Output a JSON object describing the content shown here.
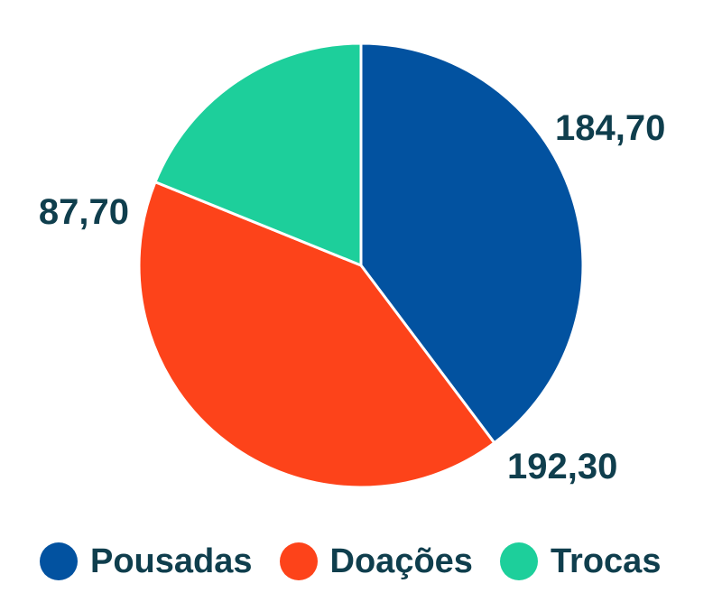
{
  "chart_data": {
    "type": "pie",
    "title": "",
    "slices": [
      {
        "name": "Pousadas",
        "value": 184.7,
        "label": "184,70",
        "color": "#0252a0"
      },
      {
        "name": "Doações",
        "value": 192.3,
        "label": "192,30",
        "color": "#fd431a"
      },
      {
        "name": "Trocas",
        "value": 87.7,
        "label": "87,70",
        "color": "#1dcf9b"
      }
    ],
    "legend_position": "bottom",
    "label_color": "#0f3e4d"
  }
}
